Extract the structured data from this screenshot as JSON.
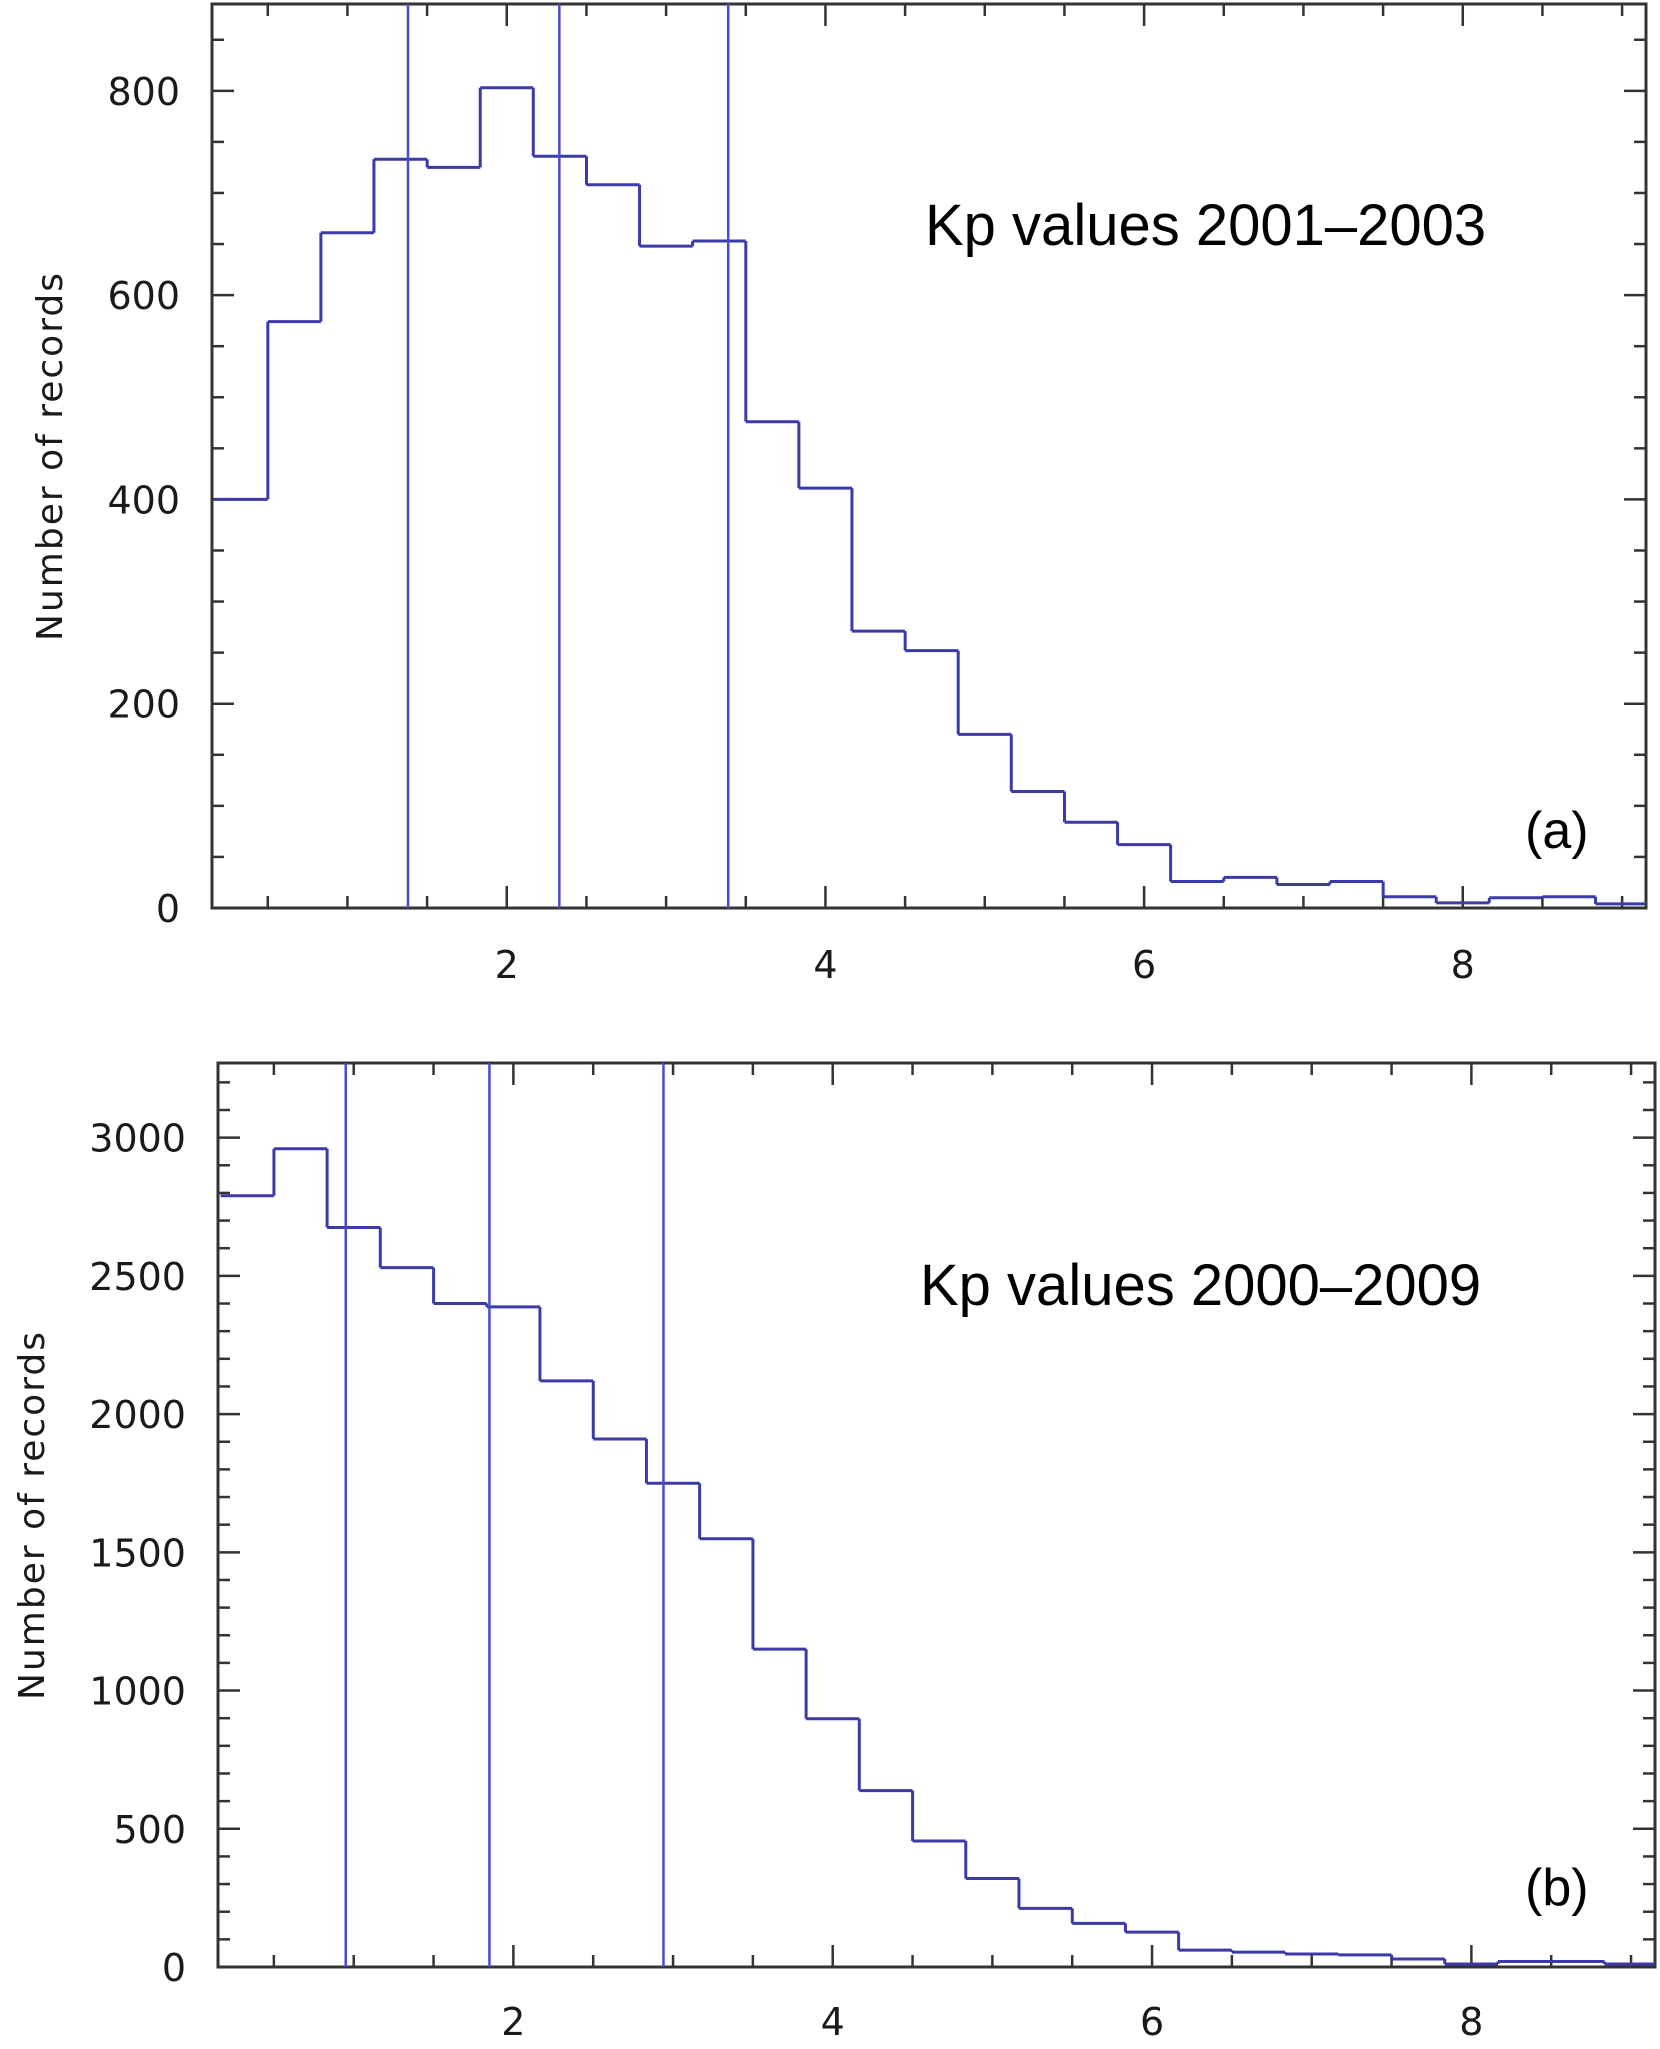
{
  "figure": {
    "panels": [
      "a",
      "b"
    ]
  },
  "chart_data": [
    {
      "type": "line",
      "subtype": "step-histogram",
      "panel_label": "(a)",
      "title": "",
      "annotation": "Kp values 2001–2003",
      "xlabel": "",
      "ylabel": "Number of records",
      "xlim": [
        0.15,
        9.15
      ],
      "ylim": [
        0,
        885
      ],
      "xticks": [
        2,
        4,
        6,
        8
      ],
      "xtick_labels": [
        "2",
        "4",
        "6",
        "8"
      ],
      "x_minor_step": 0.5,
      "yticks": [
        0,
        200,
        400,
        600,
        800
      ],
      "ytick_labels": [
        "0",
        "200",
        "400",
        "600",
        "800"
      ],
      "y_minor_step": 50,
      "grid": false,
      "bin_width": 0.3333,
      "bin_centers": [
        0.333,
        0.667,
        1.0,
        1.333,
        1.667,
        2.0,
        2.333,
        2.667,
        3.0,
        3.333,
        3.667,
        4.0,
        4.333,
        4.667,
        5.0,
        5.333,
        5.667,
        6.0,
        6.333,
        6.667,
        7.0,
        7.333,
        7.667,
        8.0,
        8.333,
        8.667,
        9.0
      ],
      "values": [
        400,
        574,
        661,
        733,
        725,
        803,
        736,
        708,
        648,
        653,
        476,
        411,
        271,
        252,
        170,
        114,
        84,
        62,
        26,
        30,
        23,
        26,
        11,
        5,
        10,
        11,
        4
      ],
      "vertical_lines": [
        1.38,
        2.33,
        3.39
      ],
      "colors": {
        "histogram": "#3b3ba8",
        "vertical_lines": "#4a4ad0",
        "axes": "#333333"
      }
    },
    {
      "type": "line",
      "subtype": "step-histogram",
      "panel_label": "(b)",
      "title": "",
      "annotation": "Kp values 2000–2009",
      "xlabel": "",
      "ylabel": "Number of records",
      "xlim": [
        0.15,
        9.15
      ],
      "ylim": [
        0,
        3270
      ],
      "xticks": [
        2,
        4,
        6,
        8
      ],
      "xtick_labels": [
        "2",
        "4",
        "6",
        "8"
      ],
      "x_minor_step": 0.5,
      "yticks": [
        0,
        500,
        1000,
        1500,
        2000,
        2500,
        3000
      ],
      "ytick_labels": [
        "0",
        "500",
        "1000",
        "1500",
        "2000",
        "2500",
        "3000"
      ],
      "y_minor_step": 100,
      "grid": false,
      "bin_width": 0.3333,
      "bin_centers": [
        0.333,
        0.667,
        1.0,
        1.333,
        1.667,
        2.0,
        2.333,
        2.667,
        3.0,
        3.333,
        3.667,
        4.0,
        4.333,
        4.667,
        5.0,
        5.333,
        5.667,
        6.0,
        6.333,
        6.667,
        7.0,
        7.333,
        7.667,
        8.0,
        8.333,
        8.667,
        9.0
      ],
      "values": [
        2790,
        2960,
        2675,
        2530,
        2400,
        2388,
        2120,
        1910,
        1750,
        1549,
        1150,
        898,
        638,
        456,
        320,
        212,
        158,
        126,
        61,
        54,
        47,
        44,
        29,
        11,
        20,
        20,
        11
      ],
      "vertical_lines": [
        0.95,
        1.85,
        2.94
      ],
      "colors": {
        "histogram": "#3b3ba8",
        "vertical_lines": "#4a4ad0",
        "axes": "#333333"
      }
    }
  ]
}
